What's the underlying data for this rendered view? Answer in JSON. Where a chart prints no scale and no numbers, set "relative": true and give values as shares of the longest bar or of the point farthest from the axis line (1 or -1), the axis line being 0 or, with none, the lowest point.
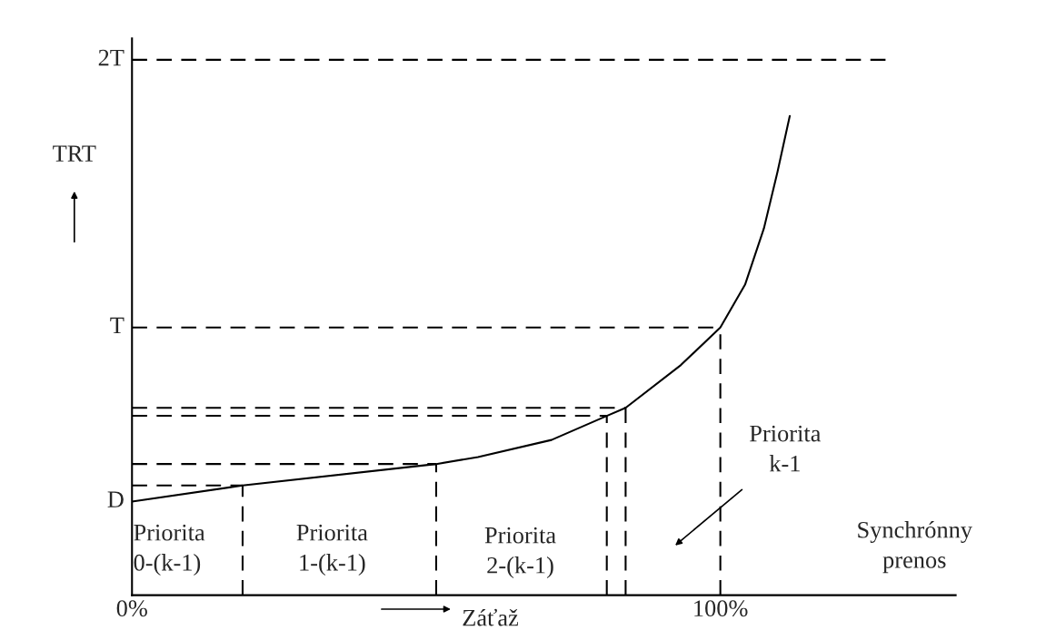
{
  "chart_data": {
    "type": "line",
    "relative": true,
    "xlabel": "Záťaž",
    "ylabel": "TRT",
    "xlim": [
      0,
      140
    ],
    "xticks": [
      {
        "value": 0,
        "label": "0%"
      },
      {
        "value": 100,
        "label": "100%"
      }
    ],
    "grid": false,
    "legend": false,
    "marker": "none",
    "line_style": "solid",
    "series": [
      {
        "color": "#000000",
        "x": [
          0,
          18.8,
          51.7,
          58.8,
          71.3,
          80.7,
          83.9,
          93.3,
          100,
          104.2,
          107.4,
          109.7,
          111.8
        ],
        "values": [
          0.175,
          0.205,
          0.245,
          0.258,
          0.29,
          0.335,
          0.35,
          0.43,
          0.5,
          0.58,
          0.685,
          0.79,
          0.895
        ]
      },
      {
        "color": "#000000",
        "line_style": "dashed",
        "x": [
          0,
          18.8
        ],
        "values": [
          0.205,
          0.205
        ]
      },
      {
        "color": "#000000",
        "line_style": "dashed",
        "x": [
          0,
          51.7
        ],
        "values": [
          0.245,
          0.245
        ]
      },
      {
        "color": "#000000",
        "line_style": "dashed",
        "x": [
          0,
          80.7
        ],
        "values": [
          0.335,
          0.335
        ]
      },
      {
        "color": "#000000",
        "line_style": "dashed",
        "x": [
          0,
          83.9
        ],
        "values": [
          0.35,
          0.35
        ]
      },
      {
        "color": "#000000",
        "line_style": "dashed",
        "x": [
          0,
          100
        ],
        "values": [
          0.5,
          0.5
        ]
      },
      {
        "color": "#000000",
        "line_style": "dashed",
        "x": [
          0,
          128.5
        ],
        "values": [
          1.0,
          1.0
        ]
      },
      {
        "color": "#000000",
        "line_style": "dashed",
        "x": [
          18.8,
          18.8
        ],
        "values": [
          0,
          0.205
        ]
      },
      {
        "color": "#000000",
        "line_style": "dashed",
        "x": [
          51.7,
          51.7
        ],
        "values": [
          0,
          0.245
        ]
      },
      {
        "color": "#000000",
        "line_style": "dashed",
        "x": [
          80.7,
          80.7
        ],
        "values": [
          0,
          0.335
        ]
      },
      {
        "color": "#000000",
        "line_style": "dashed",
        "x": [
          83.9,
          83.9
        ],
        "values": [
          0,
          0.35
        ]
      },
      {
        "color": "#000000",
        "line_style": "dashed",
        "x": [
          100,
          100
        ],
        "values": [
          0,
          0.5
        ]
      }
    ],
    "annotations": [
      "D",
      "T",
      "2T",
      "Priorita\n0-(k-1)",
      "Priorita\n1-(k-1)",
      "Priorita\n2-(k-1)",
      "Synchrónny\nprenos",
      "Priorita\nk-1"
    ]
  }
}
